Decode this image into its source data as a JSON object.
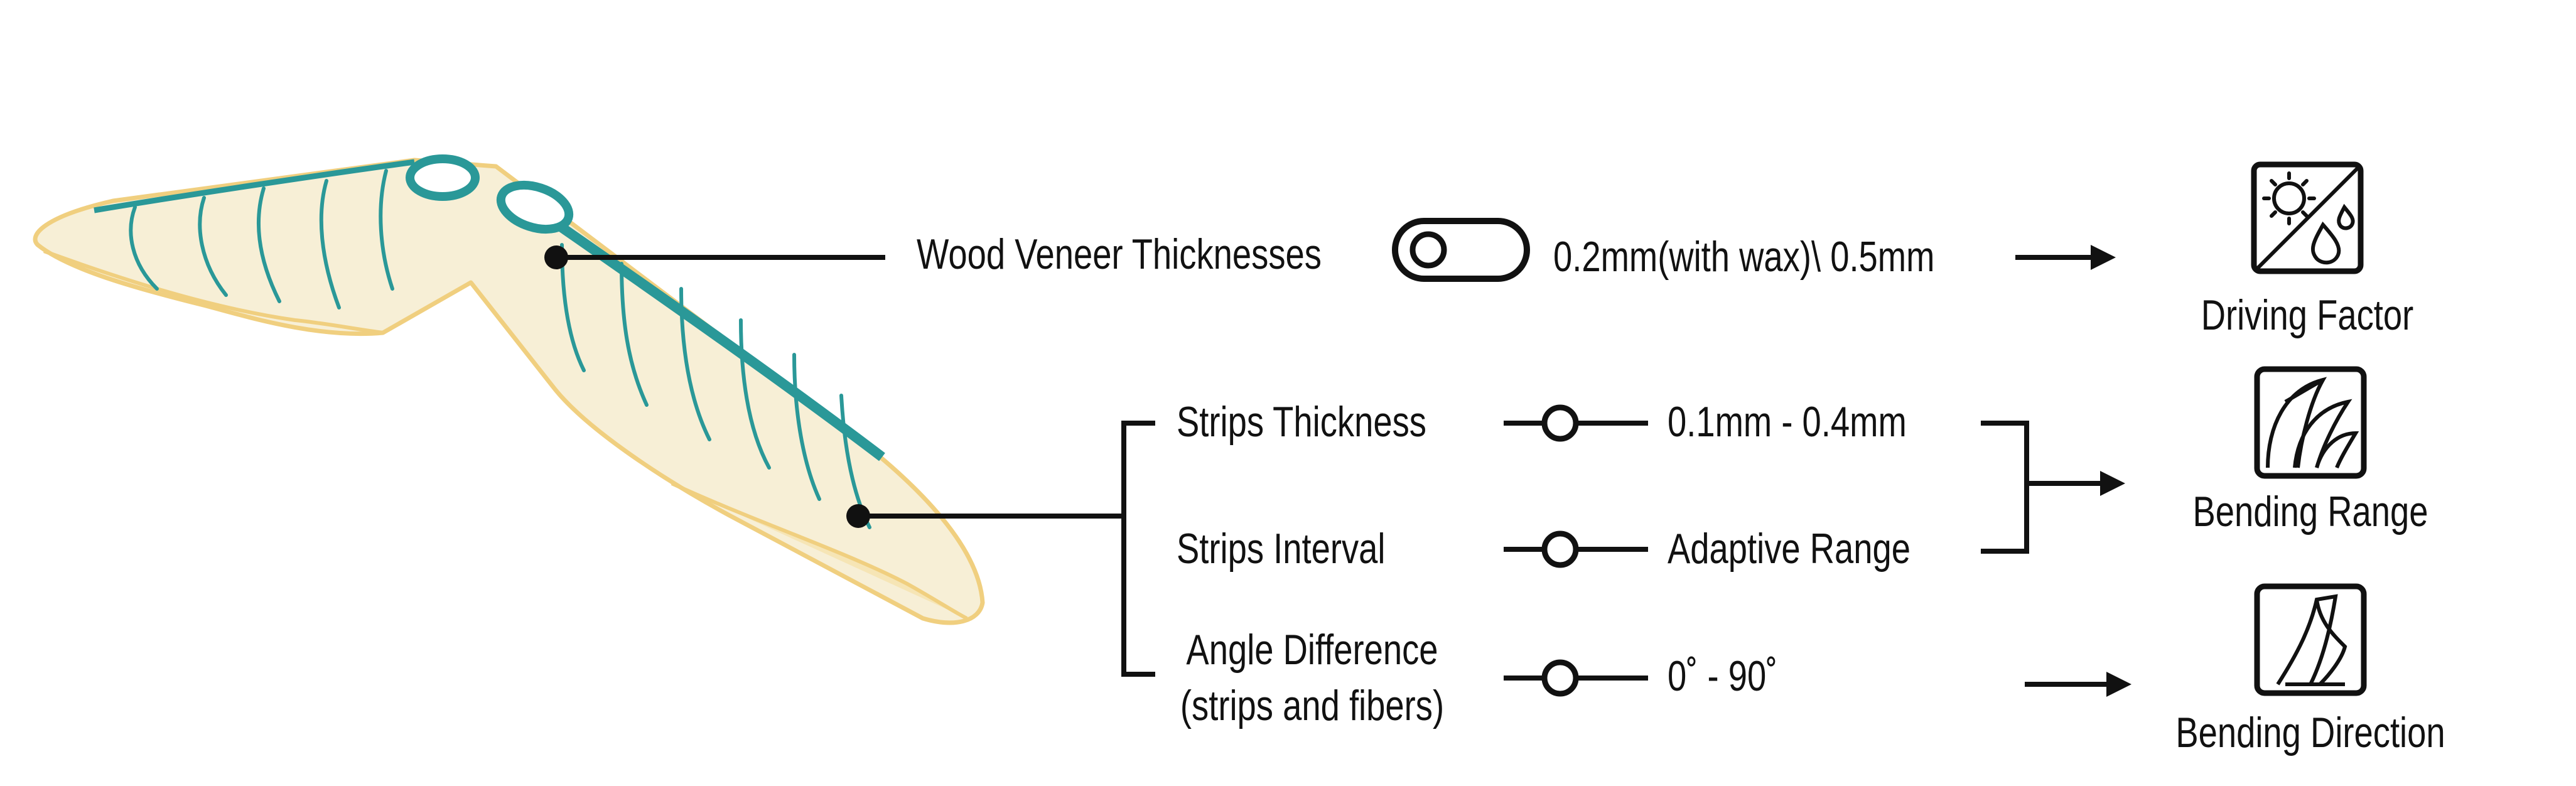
{
  "colors": {
    "veneer_fill": "#f7efd6",
    "veneer_edge": "#f0cf7f",
    "veneer_strip": "#2a9898",
    "ink": "#111111"
  },
  "labels": {
    "wood_veneer_thicknesses": "Wood Veneer Thicknesses",
    "veneer_value": "0.2mm(with wax)\\ 0.5mm",
    "strips_thickness": "Strips Thickness",
    "strips_thickness_value": "0.1mm - 0.4mm",
    "strips_interval": "Strips Interval",
    "strips_interval_value": "Adaptive Range",
    "angle_difference": "Angle Difference",
    "angle_difference_sub": "(strips and fibers)",
    "angle_difference_value": "0˚ - 90˚"
  },
  "factors": {
    "driving_factor": "Driving Factor",
    "bending_range": "Bending Range",
    "bending_direction": "Bending Direction"
  },
  "icons": {
    "veneer_toggle": "toggle-switch-icon",
    "driving_factor": "sun-and-water-drop-icon",
    "bending_range": "curled-leaves-icon",
    "bending_direction": "twisted-sheet-icon"
  }
}
